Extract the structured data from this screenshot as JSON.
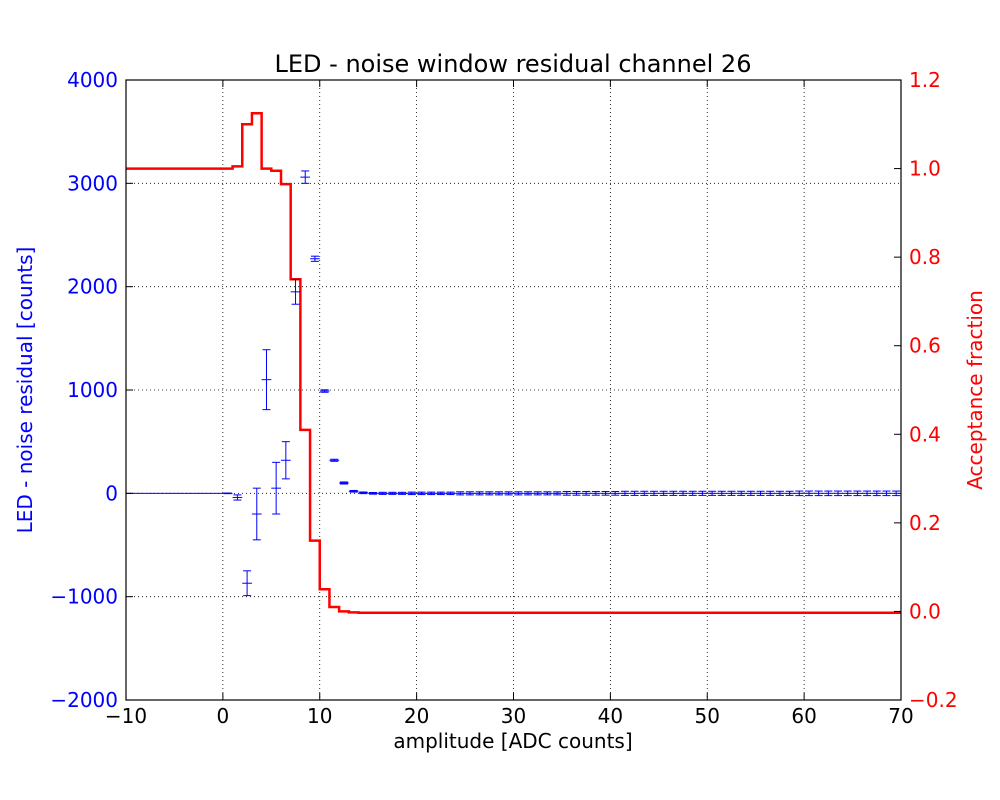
{
  "chart_data": {
    "type": "line",
    "title": "LED - noise window residual channel 26",
    "xlabel": "amplitude [ADC counts]",
    "ylabel_left": "LED - noise residual [counts]",
    "ylabel_right": "Acceptance fraction",
    "xlim": [
      -10,
      70
    ],
    "ylim_left": [
      -2000,
      4000
    ],
    "ylim_right": [
      -0.2,
      1.2
    ],
    "grid": true,
    "x_ticks": [
      "−10",
      "0",
      "10",
      "20",
      "30",
      "40",
      "50",
      "60",
      "70"
    ],
    "y_left_ticks": [
      "−2000",
      "−1000",
      "0",
      "1000",
      "2000",
      "3000",
      "4000"
    ],
    "y_right_ticks": [
      "−0.2",
      "0.0",
      "0.2",
      "0.4",
      "0.6",
      "0.8",
      "1.0",
      "1.2"
    ],
    "colors": {
      "residual": "#0000ff",
      "acceptance": "#ff0000",
      "text": "#000000",
      "grid": "#000000"
    },
    "series": [
      {
        "kind": "errorbar",
        "axis": "left",
        "x": [
          -9.5,
          -8.5,
          -7.5,
          -6.5,
          -5.5,
          -4.5,
          -3.5,
          -2.5,
          -1.5,
          -0.5,
          0.5,
          1.5,
          2.5,
          3.5,
          4.5,
          5.5,
          6.5,
          7.5,
          8.5,
          9.5,
          10.5,
          11.5,
          12.5,
          13.5,
          14.5,
          15.5,
          16.5,
          17.5,
          18.5,
          19.5,
          20.5,
          21.5,
          22.5,
          23.5,
          24.5,
          25.5,
          26.5,
          27.5,
          28.5,
          29.5,
          30.5,
          31.5,
          32.5,
          33.5,
          34.5,
          35.5,
          36.5,
          37.5,
          38.5,
          39.5,
          40.5,
          41.5,
          42.5,
          43.5,
          44.5,
          45.5,
          46.5,
          47.5,
          48.5,
          49.5,
          50.5,
          51.5,
          52.5,
          53.5,
          54.5,
          55.5,
          56.5,
          57.5,
          58.5,
          59.5,
          60.5,
          61.5,
          62.5,
          63.5,
          64.5,
          65.5,
          66.5,
          67.5,
          68.5,
          69.5
        ],
        "y": [
          0,
          0,
          0,
          0,
          0,
          0,
          0,
          0,
          0,
          0,
          0,
          -40,
          -870,
          -200,
          1100,
          50,
          320,
          1950,
          3060,
          2270,
          990,
          320,
          100,
          20,
          5,
          0,
          0,
          0,
          0,
          0,
          0,
          0,
          0,
          0,
          0,
          0,
          0,
          0,
          0,
          0,
          0,
          0,
          0,
          0,
          0,
          0,
          0,
          0,
          0,
          0,
          0,
          0,
          0,
          0,
          0,
          0,
          0,
          0,
          0,
          0,
          0,
          0,
          0,
          0,
          0,
          0,
          0,
          0,
          0,
          0,
          0,
          0,
          0,
          0,
          0,
          0,
          0,
          0,
          0,
          0
        ],
        "err": [
          0,
          0,
          0,
          0,
          0,
          0,
          0,
          0,
          0,
          0,
          3,
          25,
          120,
          250,
          290,
          250,
          180,
          120,
          60,
          25,
          12,
          10,
          10,
          8,
          8,
          8,
          10,
          10,
          10,
          12,
          12,
          12,
          12,
          12,
          15,
          15,
          15,
          15,
          15,
          15,
          15,
          15,
          15,
          15,
          15,
          18,
          18,
          18,
          18,
          18,
          18,
          20,
          20,
          20,
          20,
          20,
          20,
          20,
          20,
          20,
          20,
          20,
          20,
          20,
          20,
          20,
          20,
          20,
          20,
          22,
          22,
          22,
          22,
          22,
          22,
          22,
          22,
          22,
          22,
          22
        ]
      },
      {
        "kind": "step",
        "axis": "right",
        "x_edges": [
          -10,
          1,
          2,
          3,
          4,
          5,
          6,
          7,
          8,
          9,
          10,
          11,
          12,
          13,
          14,
          70
        ],
        "y": [
          1.0,
          1.005,
          1.1,
          1.125,
          1.0,
          0.995,
          0.965,
          0.75,
          0.41,
          0.16,
          0.05,
          0.01,
          0.0,
          -0.002,
          -0.003
        ]
      }
    ]
  }
}
